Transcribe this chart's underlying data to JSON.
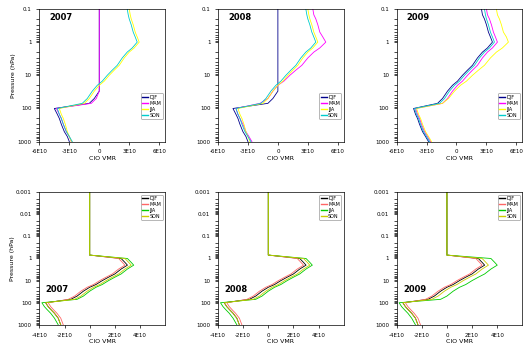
{
  "years": [
    "2007",
    "2008",
    "2009"
  ],
  "seasons": [
    "DJF",
    "MAM",
    "JJA",
    "SON"
  ],
  "colors_top": [
    "#00008B",
    "#FF00FF",
    "#FFFF00",
    "#00CCCC"
  ],
  "colors_bottom": [
    "#000000",
    "#FF6666",
    "#00CC00",
    "#CCCC00"
  ],
  "pressure_top": [
    0.1,
    0.15,
    0.2,
    0.3,
    0.5,
    0.7,
    1.0,
    1.5,
    2.0,
    3.0,
    5.0,
    7.0,
    10.0,
    15.0,
    20.0,
    30.0,
    50.0,
    70.0,
    100.0,
    150.0,
    200.0,
    300.0,
    500.0,
    700.0,
    1000.0
  ],
  "pressure_bot": [
    0.001,
    0.002,
    0.003,
    0.005,
    0.007,
    0.01,
    0.02,
    0.03,
    0.05,
    0.07,
    0.1,
    0.15,
    0.2,
    0.3,
    0.5,
    0.7,
    1.0,
    1.5,
    2.0,
    3.0,
    5.0,
    7.0,
    10.0,
    15.0,
    20.0,
    30.0,
    50.0,
    70.0,
    100.0,
    150.0,
    200.0,
    300.0,
    500.0,
    1000.0
  ],
  "top_data": {
    "2007": {
      "DJF": [
        0.0,
        0.0,
        0.0,
        0.0,
        0.0,
        0.0,
        0.0,
        0.0,
        0.0,
        0.0,
        0.0,
        0.0,
        0.0,
        0.0,
        0.0,
        0.0,
        -5e-11,
        -1e-10,
        -4.5e-10,
        -4.2e-10,
        -4e-10,
        -3.8e-10,
        -3.5e-10,
        -3.2e-10,
        -3e-10
      ],
      "MAM": [
        0.0,
        0.0,
        0.0,
        0.0,
        0.0,
        0.0,
        0.0,
        0.0,
        0.0,
        0.0,
        0.0,
        0.0,
        0.0,
        0.0,
        0.0,
        0.0,
        -3e-11,
        -8e-11,
        -4.3e-10,
        -4e-10,
        -3.8e-10,
        -3.6e-10,
        -3.3e-10,
        -3e-10,
        -2.8e-10
      ],
      "JJA": [
        3e-10,
        3.1e-10,
        3.2e-10,
        3.4e-10,
        3.6e-10,
        3.8e-10,
        4e-10,
        3.5e-10,
        3e-10,
        2.5e-10,
        2e-10,
        1.5e-10,
        1e-10,
        5e-11,
        0.0,
        -5e-11,
        -1e-10,
        -1.5e-10,
        -4e-10,
        -3.8e-10,
        -3.6e-10,
        -3.4e-10,
        -3.2e-10,
        -3e-10,
        -2.8e-10
      ],
      "SON": [
        2.8e-10,
        2.9e-10,
        3e-10,
        3.2e-10,
        3.4e-10,
        3.6e-10,
        3.8e-10,
        3.3e-10,
        2.8e-10,
        2.3e-10,
        1.8e-10,
        1.3e-10,
        8e-11,
        3e-11,
        -2e-11,
        -7e-11,
        -1.2e-10,
        -1.7e-10,
        -4.2e-10,
        -4e-10,
        -3.8e-10,
        -3.6e-10,
        -3.3e-10,
        -3e-10,
        -2.7e-10
      ]
    },
    "2008": {
      "DJF": [
        0.0,
        0.0,
        0.0,
        0.0,
        0.0,
        0.0,
        0.0,
        0.0,
        0.0,
        0.0,
        0.0,
        0.0,
        0.0,
        0.0,
        0.0,
        0.0,
        -5e-11,
        -1e-10,
        -4.5e-10,
        -4.2e-10,
        -4e-10,
        -3.8e-10,
        -3.5e-10,
        -3.2e-10,
        -3e-10
      ],
      "MAM": [
        3.5e-10,
        3.6e-10,
        3.8e-10,
        4e-10,
        4.2e-10,
        4.5e-10,
        4.8e-10,
        4.2e-10,
        3.6e-10,
        3e-10,
        2.4e-10,
        1.8e-10,
        1.2e-10,
        6e-11,
        0.0,
        -5e-11,
        -1e-10,
        -1.8e-10,
        -4.2e-10,
        -4e-10,
        -3.8e-10,
        -3.5e-10,
        -3.2e-10,
        -2.9e-10,
        -2.6e-10
      ],
      "JJA": [
        3e-10,
        3.1e-10,
        3.2e-10,
        3.4e-10,
        3.6e-10,
        3.8e-10,
        4e-10,
        3.5e-10,
        3e-10,
        2.5e-10,
        2e-10,
        1.5e-10,
        1e-10,
        5e-11,
        0.0,
        -5e-11,
        -1e-10,
        -1.5e-10,
        -4e-10,
        -3.8e-10,
        -3.6e-10,
        -3.4e-10,
        -3.2e-10,
        -3e-10,
        -2.8e-10
      ],
      "SON": [
        2.8e-10,
        2.9e-10,
        3e-10,
        3.2e-10,
        3.4e-10,
        3.6e-10,
        3.8e-10,
        3.3e-10,
        2.8e-10,
        2.3e-10,
        1.8e-10,
        1.3e-10,
        8e-11,
        3e-11,
        -2e-11,
        -7e-11,
        -1.2e-10,
        -1.7e-10,
        -4.2e-10,
        -4e-10,
        -3.8e-10,
        -3.6e-10,
        -3.3e-10,
        -3e-10,
        -2.7e-10
      ]
    },
    "2009": {
      "DJF": [
        2.5e-10,
        2.6e-10,
        2.8e-10,
        3e-10,
        3.2e-10,
        3.4e-10,
        3.6e-10,
        3.1e-10,
        2.6e-10,
        2.1e-10,
        1.6e-10,
        1.1e-10,
        6e-11,
        1e-11,
        -4e-11,
        -9e-11,
        -1.4e-10,
        -1.9e-10,
        -4.3e-10,
        -4.1e-10,
        -3.9e-10,
        -3.7e-10,
        -3.4e-10,
        -3.1e-10,
        -2.8e-10
      ],
      "MAM": [
        3e-10,
        3.1e-10,
        3.3e-10,
        3.5e-10,
        3.7e-10,
        3.9e-10,
        4.1e-10,
        3.6e-10,
        3.1e-10,
        2.6e-10,
        2.1e-10,
        1.6e-10,
        1.1e-10,
        6e-11,
        1e-11,
        -4e-11,
        -9e-11,
        -1.4e-10,
        -4.1e-10,
        -3.9e-10,
        -3.7e-10,
        -3.5e-10,
        -3.2e-10,
        -2.9e-10,
        -2.6e-10
      ],
      "JJA": [
        4e-10,
        4.1e-10,
        4.3e-10,
        4.5e-10,
        4.7e-10,
        5e-10,
        5.2e-10,
        4.6e-10,
        4e-10,
        3.4e-10,
        2.8e-10,
        2.2e-10,
        1.6e-10,
        1e-10,
        4e-11,
        -2e-11,
        -8e-11,
        -1.4e-10,
        -4e-10,
        -3.8e-10,
        -3.6e-10,
        -3.4e-10,
        -3.1e-10,
        -2.8e-10,
        -2.5e-10
      ],
      "SON": [
        2.8e-10,
        2.9e-10,
        3e-10,
        3.2e-10,
        3.4e-10,
        3.6e-10,
        3.8e-10,
        3.3e-10,
        2.8e-10,
        2.3e-10,
        1.8e-10,
        1.3e-10,
        8e-11,
        3e-11,
        -2e-11,
        -7e-11,
        -1.2e-10,
        -1.7e-10,
        -4.2e-10,
        -4e-10,
        -3.8e-10,
        -3.6e-10,
        -3.3e-10,
        -3e-10,
        -2.7e-10
      ]
    }
  },
  "bot_data": {
    "2007": {
      "DJF": [
        0.0,
        0.0,
        0.0,
        0.0,
        0.0,
        0.0,
        0.0,
        0.0,
        0.0,
        0.0,
        0.0,
        0.0,
        0.0,
        0.0,
        0.0,
        0.0,
        2.5e-10,
        2.8e-10,
        3e-10,
        2.5e-10,
        2e-10,
        1.5e-10,
        1e-10,
        5e-11,
        0.0,
        -5e-11,
        -1e-10,
        -1.5e-10,
        -3.5e-10,
        -3.3e-10,
        -3.1e-10,
        -2.8e-10,
        -2.5e-10,
        -2.3e-10
      ],
      "MAM": [
        0.0,
        0.0,
        0.0,
        0.0,
        0.0,
        0.0,
        0.0,
        0.0,
        0.0,
        0.0,
        0.0,
        0.0,
        0.0,
        0.0,
        0.0,
        0.0,
        2.3e-10,
        2.6e-10,
        2.8e-10,
        2.3e-10,
        1.8e-10,
        1.3e-10,
        8e-11,
        3e-11,
        -2e-11,
        -7e-11,
        -1.2e-10,
        -1.7e-10,
        -3.3e-10,
        -3.1e-10,
        -2.9e-10,
        -2.6e-10,
        -2.3e-10,
        -2.1e-10
      ],
      "JJA": [
        0.0,
        0.0,
        0.0,
        0.0,
        0.0,
        0.0,
        0.0,
        0.0,
        0.0,
        0.0,
        0.0,
        0.0,
        0.0,
        0.0,
        0.0,
        0.0,
        3e-10,
        3.3e-10,
        3.5e-10,
        3e-10,
        2.5e-10,
        2e-10,
        1.5e-10,
        1e-10,
        5e-11,
        0.0,
        -5e-11,
        -1e-10,
        -3.8e-10,
        -3.6e-10,
        -3.4e-10,
        -3.1e-10,
        -2.8e-10,
        -2.5e-10
      ],
      "SON": [
        0.0,
        0.0,
        0.0,
        0.0,
        0.0,
        0.0,
        0.0,
        0.0,
        0.0,
        0.0,
        0.0,
        0.0,
        0.0,
        0.0,
        0.0,
        0.0,
        2.8e-10,
        3.1e-10,
        3.3e-10,
        2.8e-10,
        2.3e-10,
        1.8e-10,
        1.3e-10,
        8e-11,
        3e-11,
        -2e-11,
        -7e-11,
        -1.2e-10,
        -3.5e-10,
        -3.3e-10,
        -3.1e-10,
        -2.8e-10,
        -2.5e-10,
        -2.3e-10
      ]
    },
    "2008": {
      "DJF": [
        0.0,
        0.0,
        0.0,
        0.0,
        0.0,
        0.0,
        0.0,
        0.0,
        0.0,
        0.0,
        0.0,
        0.0,
        0.0,
        0.0,
        0.0,
        0.0,
        2.5e-10,
        2.8e-10,
        3e-10,
        2.5e-10,
        2e-10,
        1.5e-10,
        1e-10,
        5e-11,
        0.0,
        -5e-11,
        -1e-10,
        -1.5e-10,
        -3.5e-10,
        -3.3e-10,
        -3.1e-10,
        -2.8e-10,
        -2.5e-10,
        -2.3e-10
      ],
      "MAM": [
        0.0,
        0.0,
        0.0,
        0.0,
        0.0,
        0.0,
        0.0,
        0.0,
        0.0,
        0.0,
        0.0,
        0.0,
        0.0,
        0.0,
        0.0,
        0.0,
        2.3e-10,
        2.6e-10,
        2.8e-10,
        2.3e-10,
        1.8e-10,
        1.3e-10,
        8e-11,
        3e-11,
        -2e-11,
        -7e-11,
        -1.2e-10,
        -1.7e-10,
        -3.3e-10,
        -3.1e-10,
        -2.9e-10,
        -2.6e-10,
        -2.3e-10,
        -2.1e-10
      ],
      "JJA": [
        0.0,
        0.0,
        0.0,
        0.0,
        0.0,
        0.0,
        0.0,
        0.0,
        0.0,
        0.0,
        0.0,
        0.0,
        0.0,
        0.0,
        0.0,
        0.0,
        3e-10,
        3.3e-10,
        3.5e-10,
        3e-10,
        2.5e-10,
        2e-10,
        1.5e-10,
        1e-10,
        5e-11,
        0.0,
        -5e-11,
        -1e-10,
        -3.8e-10,
        -3.6e-10,
        -3.4e-10,
        -3.1e-10,
        -2.8e-10,
        -2.5e-10
      ],
      "SON": [
        0.0,
        0.0,
        0.0,
        0.0,
        0.0,
        0.0,
        0.0,
        0.0,
        0.0,
        0.0,
        0.0,
        0.0,
        0.0,
        0.0,
        0.0,
        0.0,
        2.8e-10,
        3.1e-10,
        3.3e-10,
        2.8e-10,
        2.3e-10,
        1.8e-10,
        1.3e-10,
        8e-11,
        3e-11,
        -2e-11,
        -7e-11,
        -1.2e-10,
        -3.5e-10,
        -3.3e-10,
        -3.1e-10,
        -2.8e-10,
        -2.5e-10,
        -2.3e-10
      ]
    },
    "2009": {
      "DJF": [
        0.0,
        0.0,
        0.0,
        0.0,
        0.0,
        0.0,
        0.0,
        0.0,
        0.0,
        0.0,
        0.0,
        0.0,
        0.0,
        0.0,
        0.0,
        0.0,
        2.5e-10,
        2.8e-10,
        3e-10,
        2.5e-10,
        2e-10,
        1.5e-10,
        1e-10,
        5e-11,
        0.0,
        -5e-11,
        -1e-10,
        -1.5e-10,
        -3.5e-10,
        -3.3e-10,
        -3.1e-10,
        -2.8e-10,
        -2.5e-10,
        -2.3e-10
      ],
      "MAM": [
        0.0,
        0.0,
        0.0,
        0.0,
        0.0,
        0.0,
        0.0,
        0.0,
        0.0,
        0.0,
        0.0,
        0.0,
        0.0,
        0.0,
        0.0,
        0.0,
        2.3e-10,
        2.6e-10,
        2.8e-10,
        2.3e-10,
        1.8e-10,
        1.3e-10,
        8e-11,
        3e-11,
        -2e-11,
        -7e-11,
        -1.2e-10,
        -1.7e-10,
        -3.3e-10,
        -3.1e-10,
        -2.9e-10,
        -2.6e-10,
        -2.3e-10,
        -2.1e-10
      ],
      "JJA": [
        0.0,
        0.0,
        0.0,
        0.0,
        0.0,
        0.0,
        0.0,
        0.0,
        0.0,
        0.0,
        0.0,
        0.0,
        0.0,
        0.0,
        0.0,
        0.0,
        3.5e-10,
        3.8e-10,
        4e-10,
        3.5e-10,
        3e-10,
        2.5e-10,
        2e-10,
        1.5e-10,
        1e-10,
        5e-11,
        0.0,
        -5e-11,
        -3.8e-10,
        -3.6e-10,
        -3.4e-10,
        -3.1e-10,
        -2.8e-10,
        -2.5e-10
      ],
      "SON": [
        0.0,
        0.0,
        0.0,
        0.0,
        0.0,
        0.0,
        0.0,
        0.0,
        0.0,
        0.0,
        0.0,
        0.0,
        0.0,
        0.0,
        0.0,
        0.0,
        2.8e-10,
        3.1e-10,
        3.3e-10,
        2.8e-10,
        2.3e-10,
        1.8e-10,
        1.3e-10,
        8e-11,
        3e-11,
        -2e-11,
        -7e-11,
        -1.2e-10,
        -3.5e-10,
        -3.3e-10,
        -3.1e-10,
        -2.8e-10,
        -2.5e-10,
        -2.3e-10
      ]
    }
  },
  "xlabel": "ClO VMR",
  "ylabel": "Pressure (hPa)",
  "title_fontsize": 6,
  "label_fontsize": 4.5,
  "tick_fontsize": 4,
  "legend_fontsize": 3.5,
  "lw": 0.6
}
